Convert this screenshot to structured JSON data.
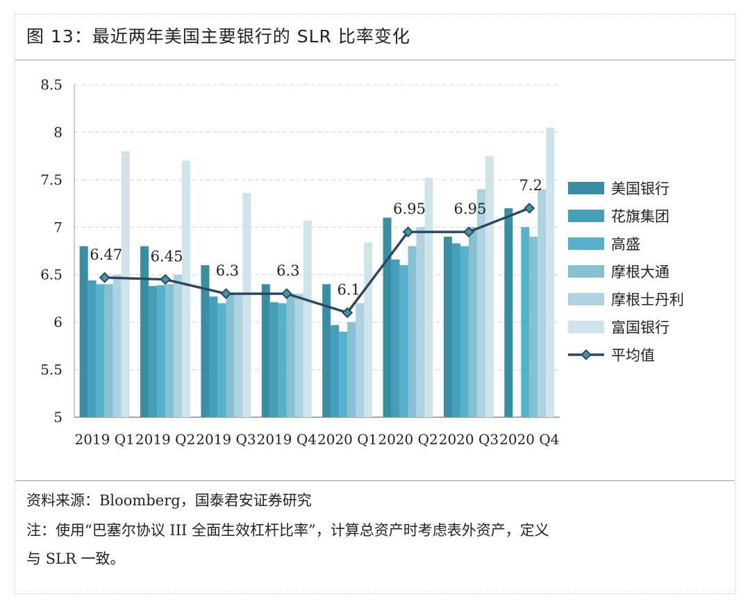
{
  "title": "图 13：最近两年美国主要银行的 SLR 比率变化",
  "notes": {
    "source": "资料来源：Bloomberg，国泰君安证券研究",
    "note_line1": "注：使用“巴塞尔协议 III 全面生效杠杆比率”，计算总资产时考虑表外资产，定义",
    "note_line2": "与 SLR 一致。"
  },
  "chart_data": {
    "type": "bar",
    "categories": [
      "2019 Q1",
      "2019 Q2",
      "2019 Q3",
      "2019 Q4",
      "2020 Q1",
      "2020 Q2",
      "2020 Q3",
      "2020 Q4"
    ],
    "series": [
      {
        "name": "美国银行",
        "color": "#3a8ea3",
        "values": [
          6.8,
          6.8,
          6.6,
          6.4,
          6.4,
          7.1,
          6.9,
          7.2
        ]
      },
      {
        "name": "花旗集团",
        "color": "#469fb8",
        "values": [
          6.44,
          6.38,
          6.27,
          6.21,
          5.97,
          6.66,
          6.83,
          null
        ]
      },
      {
        "name": "高盛",
        "color": "#55b2ca",
        "values": [
          6.4,
          6.39,
          6.2,
          6.2,
          5.9,
          6.6,
          6.8,
          7.0
        ]
      },
      {
        "name": "摩根大通",
        "color": "#86c1d2",
        "values": [
          6.4,
          6.4,
          6.3,
          6.3,
          6.0,
          6.8,
          7.0,
          6.9
        ]
      },
      {
        "name": "摩根士丹利",
        "color": "#acd3df",
        "values": [
          6.5,
          6.5,
          6.3,
          6.3,
          6.2,
          7.0,
          7.4,
          7.4
        ]
      },
      {
        "name": "富国银行",
        "color": "#cfe3eb",
        "values": [
          7.8,
          7.7,
          7.36,
          7.07,
          6.84,
          7.52,
          7.75,
          8.05
        ]
      }
    ],
    "line": {
      "name": "平均值",
      "color": "#2c4861",
      "marker_color": "#3f97ad",
      "values": [
        6.47,
        6.45,
        6.3,
        6.3,
        6.1,
        6.95,
        6.95,
        7.2
      ],
      "labels": [
        "6.47",
        "6.45",
        "6.3",
        "6.3",
        "6.1",
        "6.95",
        "6.95",
        "7.2"
      ]
    },
    "ylim": [
      5,
      8.5
    ],
    "yticks": [
      "5",
      "5.5",
      "6",
      "6.5",
      "7",
      "7.5",
      "8",
      "8.5"
    ],
    "grid": true,
    "legend": "right"
  }
}
